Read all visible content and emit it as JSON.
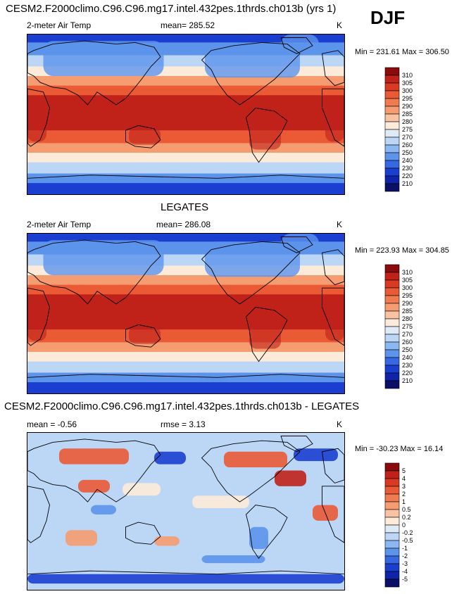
{
  "header": {
    "title": "CESM2.F2000climo.C96.C96.mg17.intel.432pes.1thrds.ch013b (yrs 1)",
    "season": "DJF"
  },
  "panel1": {
    "variable": "2-meter Air Temp",
    "mean_label": "mean= 285.52",
    "units": "K",
    "minmax": "Min = 231.61 Max = 306.50"
  },
  "panel2": {
    "title": "LEGATES",
    "variable": "2-meter Air Temp",
    "mean_label": "mean= 286.08",
    "units": "K",
    "minmax": "Min = 223.93 Max = 304.85"
  },
  "panel3": {
    "title": "CESM2.F2000climo.C96.C96.mg17.intel.432pes.1thrds.ch013b - LEGATES",
    "mean_label": "mean =  -0.56",
    "rmse_label": "rmse =  3.13",
    "units": "K",
    "minmax": "Min = -30.23 Max =  16.14"
  },
  "colorbar_temp": {
    "labels": [
      "310",
      "305",
      "300",
      "295",
      "290",
      "285",
      "280",
      "275",
      "270",
      "260",
      "250",
      "240",
      "230",
      "220",
      "210"
    ],
    "colors": [
      "#8a0b0b",
      "#c0221a",
      "#db3a22",
      "#e95a35",
      "#f07b4f",
      "#f59c70",
      "#f9c2a2",
      "#fdebd9",
      "#deebf7",
      "#bcd6f5",
      "#8cb8f2",
      "#5c94ec",
      "#3668e2",
      "#1a3fd0",
      "#0f24a8",
      "#091066"
    ]
  },
  "colorbar_diff": {
    "labels": [
      "5",
      "4",
      "3",
      "2",
      "1",
      "0.5",
      "0.2",
      "0",
      "-0.2",
      "-0.5",
      "-1",
      "-2",
      "-3",
      "-4",
      "-5"
    ],
    "colors": [
      "#8a0b0b",
      "#c0221a",
      "#db3a22",
      "#e95a35",
      "#f07b4f",
      "#f59c70",
      "#f9c2a2",
      "#fdebd9",
      "#deebf7",
      "#bcd6f5",
      "#8cb8f2",
      "#5c94ec",
      "#3668e2",
      "#1a3fd0",
      "#0f24a8",
      "#091066"
    ]
  },
  "palette": {
    "cold_deep": "#1a3fd0",
    "cold": "#5c94ec",
    "cool": "#bcd6f5",
    "neutral": "#fdebd9",
    "warm": "#f59c70",
    "hot": "#e95a35",
    "hottest": "#c0221a",
    "coast": "#000000"
  }
}
